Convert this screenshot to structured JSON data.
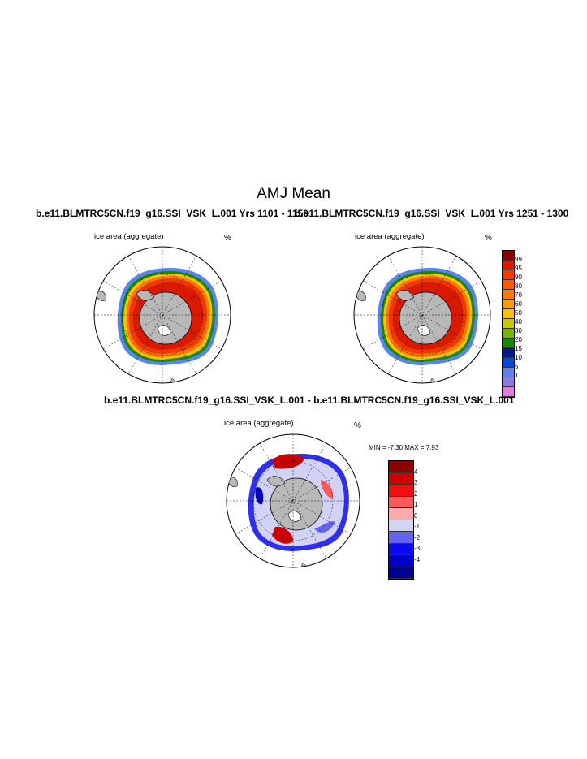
{
  "figure": {
    "title": "AMJ Mean"
  },
  "panels": [
    {
      "title": "b.e11.BLMTRC5CN.f19_g16.SSI_VSK_L.001  Yrs 1101 - 1150",
      "left_label": "ice area  (aggregate)",
      "right_label": "%"
    },
    {
      "title": "b.e11.BLMTRC5CN.f19_g16.SSI_VSK_L.001  Yrs 1251 - 1300",
      "left_label": "ice area  (aggregate)",
      "right_label": "%"
    },
    {
      "title": "b.e11.BLMTRC5CN.f19_g16.SSI_VSK_L.001 - b.e11.BLMTRC5CN.f19_g16.SSI_VSK_L.001",
      "left_label": "ice area  (aggregate)",
      "right_label": "%",
      "stats": "MIN =  -7.30 MAX =   7.93"
    }
  ],
  "colorbar_ice": {
    "labels": [
      "99",
      "95",
      "90",
      "80",
      "70",
      "60",
      "50",
      "40",
      "30",
      "20",
      "15",
      "10",
      "5",
      "1"
    ],
    "colors": [
      "#8b0000",
      "#d71a00",
      "#ee3a00",
      "#ff5a00",
      "#ff7a00",
      "#ff9c00",
      "#ffc200",
      "#c8c800",
      "#72b400",
      "#138a00",
      "#00198a",
      "#0046d8",
      "#5a82f0",
      "#8c78e6",
      "#e678e6"
    ]
  },
  "colorbar_diff": {
    "labels": [
      "4",
      "3",
      "2",
      "1",
      "0",
      "-1",
      "-2",
      "-3",
      "-4"
    ],
    "colors": [
      "#8b0000",
      "#cc0000",
      "#ee1010",
      "#ff5a5a",
      "#ffaaaa",
      "#d2d2f5",
      "#6464f0",
      "#0a0af0",
      "#0000c8",
      "#000096"
    ]
  }
}
